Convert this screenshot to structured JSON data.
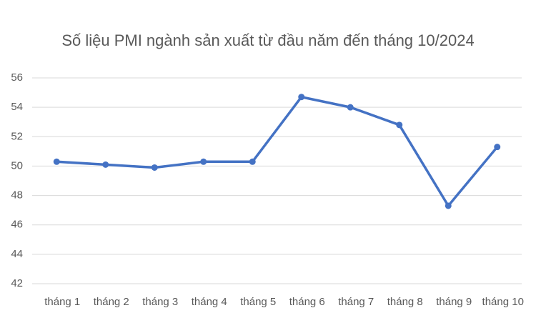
{
  "chart_data": {
    "type": "line",
    "title": "Số liệu PMI ngành sản xuất từ đầu năm đến tháng 10/2024",
    "categories": [
      "tháng 1",
      "tháng 2",
      "tháng 3",
      "tháng 4",
      "tháng 5",
      "tháng 6",
      "tháng 7",
      "tháng 8",
      "tháng 9",
      "tháng 10"
    ],
    "series": [
      {
        "name": "PMI",
        "color": "#4472c4",
        "values": [
          50.3,
          50.1,
          49.9,
          50.3,
          50.3,
          54.7,
          54.0,
          52.8,
          47.3,
          51.3
        ]
      }
    ],
    "ylim": [
      42,
      56
    ],
    "yticks": [
      42,
      44,
      46,
      48,
      50,
      52,
      54,
      56
    ],
    "grid": true
  }
}
